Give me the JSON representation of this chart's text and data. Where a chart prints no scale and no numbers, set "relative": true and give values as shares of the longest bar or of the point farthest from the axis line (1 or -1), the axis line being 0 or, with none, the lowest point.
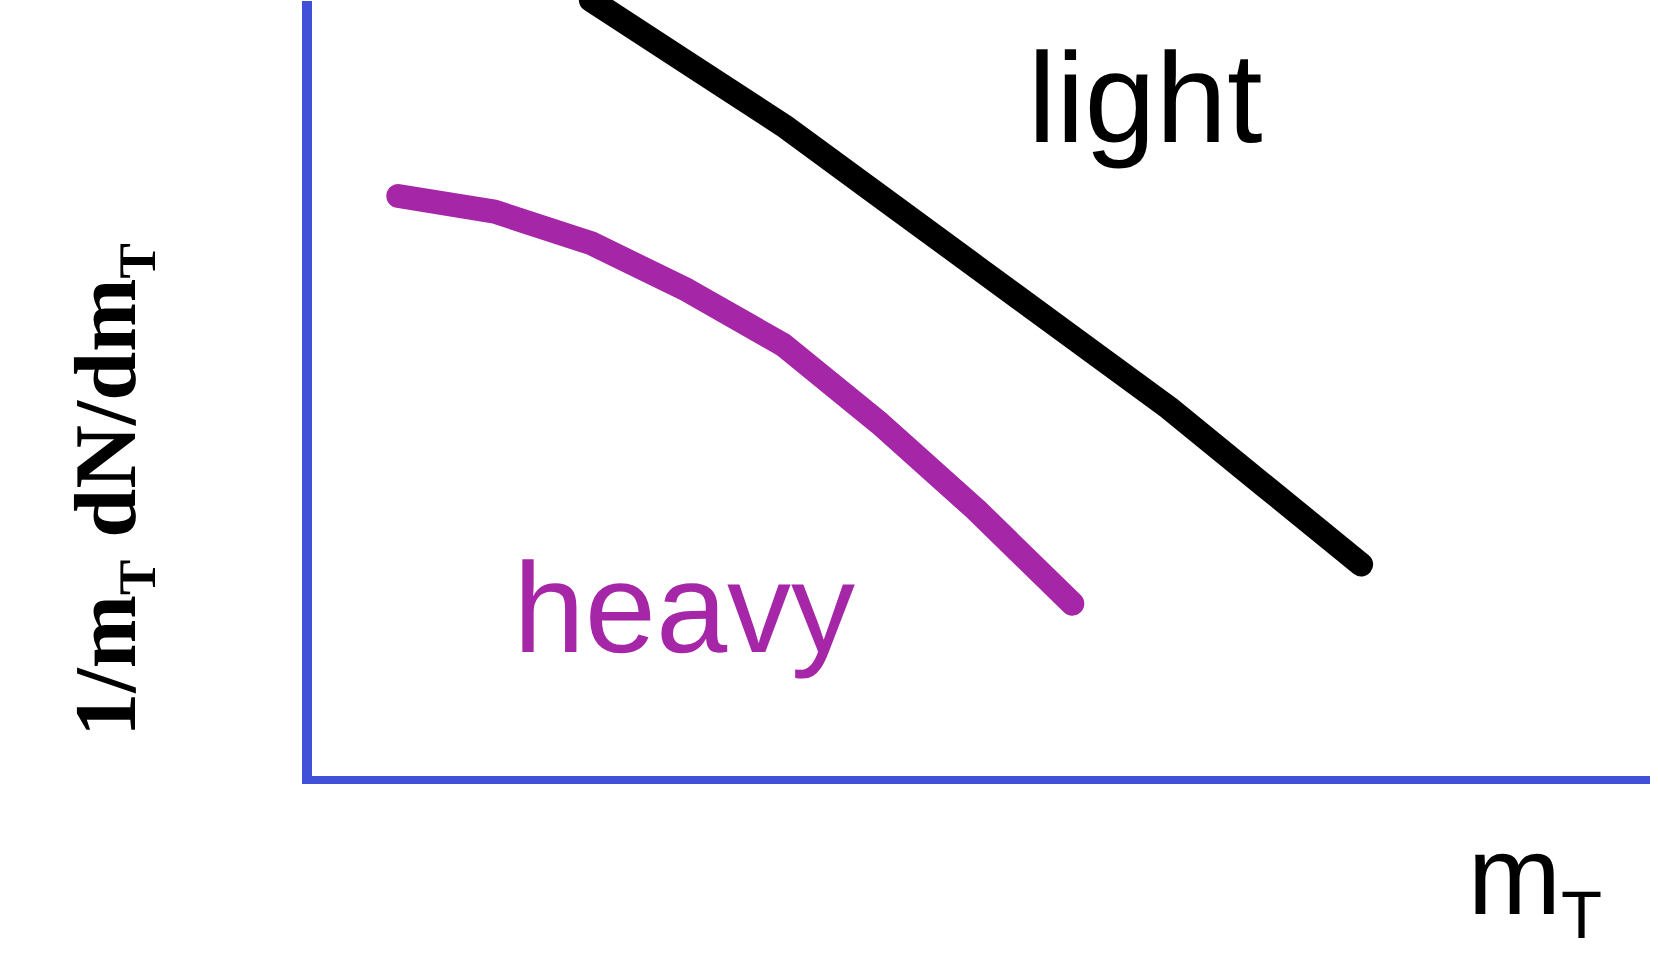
{
  "chart_data": {
    "type": "line",
    "relative": true,
    "xlabel": "m$_{T}$",
    "ylabel": "1/m$_{T}$ dN/dm$_{T}$",
    "categories": [
      null,
      null,
      null,
      null,
      null,
      null,
      null,
      null,
      null,
      null,
      null,
      null,
      null,
      null,
      null
    ],
    "series": [
      {
        "name": "light",
        "color": "#000000",
        "values": [
          null,
          null,
          null,
          1.0,
          0.92,
          0.84,
          0.75,
          0.66,
          0.57,
          0.48,
          0.38,
          0.28,
          null,
          null,
          null
        ]
      },
      {
        "name": "heavy",
        "color": "#a626a8",
        "values": [
          null,
          0.75,
          0.73,
          0.69,
          0.63,
          0.56,
          0.46,
          0.35,
          0.23,
          null,
          null,
          null,
          null,
          null,
          null
        ]
      }
    ]
  }
}
